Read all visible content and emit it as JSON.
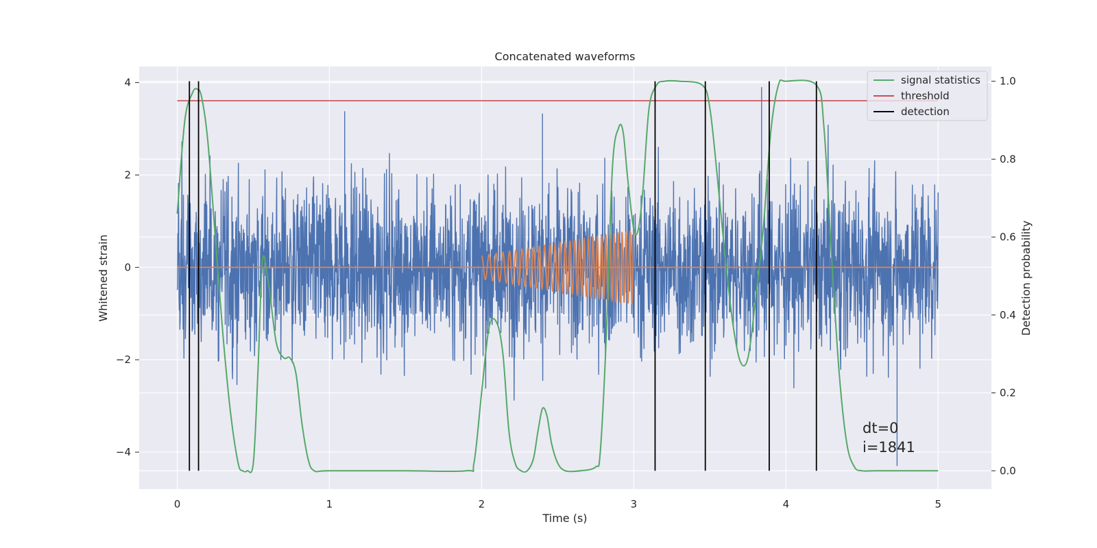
{
  "chart_data": {
    "type": "line",
    "title": "Concatenated waveforms",
    "xlabel": "Time (s)",
    "ylabel_left": "Whitened strain",
    "ylabel_right": "Detection probability",
    "xlim": [
      -0.25,
      5.35
    ],
    "ylim_left": [
      -4.8,
      4.35
    ],
    "ylim_right": [
      -0.047,
      1.038
    ],
    "x_ticks": [
      0,
      1,
      2,
      3,
      4,
      5
    ],
    "y_left_ticks": [
      -4,
      -2,
      0,
      2,
      4
    ],
    "y_right_ticks": [
      0.0,
      0.2,
      0.4,
      0.6,
      0.8,
      1.0
    ],
    "x_tick_labels": [
      "0",
      "1",
      "2",
      "3",
      "4",
      "5"
    ],
    "y_left_tick_labels": [
      "−4",
      "−2",
      "0",
      "2",
      "4"
    ],
    "y_right_tick_labels": [
      "0.0",
      "0.2",
      "0.4",
      "0.6",
      "0.8",
      "1.0"
    ],
    "grid": true,
    "legend_position": "top-right",
    "legend": [
      "signal statistics",
      "threshold",
      "detection"
    ],
    "colors": {
      "background": "#eaeaf2",
      "grid": "#ffffff",
      "strain": "#4c72b0",
      "injection": "#dd8452",
      "statistics": "#55a868",
      "threshold": "#c44e52",
      "detection": "#000000"
    },
    "annotations": [
      "dt=0",
      "i=1841"
    ],
    "series": [
      {
        "name": "signal statistics",
        "axis": "right",
        "x": [
          0.0,
          0.05,
          0.1,
          0.13,
          0.16,
          0.2,
          0.25,
          0.3,
          0.35,
          0.4,
          0.43,
          0.46,
          0.5,
          0.53,
          0.56,
          0.6,
          0.65,
          0.7,
          0.74,
          0.78,
          0.82,
          0.86,
          0.9,
          1.0,
          1.5,
          1.9,
          1.95,
          2.0,
          2.05,
          2.1,
          2.14,
          2.18,
          2.22,
          2.26,
          2.3,
          2.34,
          2.37,
          2.4,
          2.43,
          2.46,
          2.5,
          2.55,
          2.65,
          2.75,
          2.78,
          2.82,
          2.86,
          2.9,
          2.93,
          2.96,
          3.0,
          3.03,
          3.06,
          3.1,
          3.15,
          3.2,
          3.3,
          3.45,
          3.5,
          3.55,
          3.6,
          3.65,
          3.7,
          3.75,
          3.8,
          3.85,
          3.9,
          3.95,
          4.0,
          4.2,
          4.25,
          4.3,
          4.35,
          4.4,
          4.45,
          4.5,
          4.6,
          5.0
        ],
        "y": [
          0.66,
          0.9,
          0.97,
          0.98,
          0.96,
          0.85,
          0.6,
          0.35,
          0.15,
          0.02,
          0.0,
          0.0,
          0.02,
          0.25,
          0.54,
          0.48,
          0.33,
          0.29,
          0.29,
          0.25,
          0.12,
          0.03,
          0.0,
          0.0,
          0.0,
          0.0,
          0.02,
          0.2,
          0.37,
          0.38,
          0.3,
          0.1,
          0.02,
          0.0,
          0.0,
          0.03,
          0.1,
          0.16,
          0.14,
          0.07,
          0.02,
          0.0,
          0.0,
          0.01,
          0.05,
          0.35,
          0.78,
          0.88,
          0.87,
          0.75,
          0.62,
          0.62,
          0.72,
          0.93,
          0.99,
          1.0,
          1.0,
          0.99,
          0.93,
          0.75,
          0.55,
          0.38,
          0.28,
          0.29,
          0.44,
          0.62,
          0.87,
          0.99,
          1.0,
          0.99,
          0.88,
          0.55,
          0.25,
          0.07,
          0.01,
          0.0,
          0.0,
          0.0
        ]
      },
      {
        "name": "threshold",
        "axis": "right",
        "x": [
          0.0,
          5.0
        ],
        "y": [
          0.95,
          0.95
        ]
      },
      {
        "name": "detection",
        "axis": "right",
        "type": "vlines",
        "x": [
          0.08,
          0.14,
          3.14,
          3.47,
          3.89,
          4.2
        ],
        "ymin": 0.0,
        "ymax": 1.0
      },
      {
        "name": "",
        "axis": "left",
        "description": "whitened strain noise, 0 to 5 s, 4096 samples/s",
        "x_range": [
          0.0,
          5.0
        ],
        "mean": 0.0,
        "std": 0.9,
        "extremes": [
          [
            1.1,
            3.38
          ],
          [
            2.4,
            3.33
          ],
          [
            4.73,
            -4.3
          ],
          [
            3.84,
            3.9
          ]
        ]
      },
      {
        "name": "",
        "axis": "left",
        "description": "injected chirp, 2 to 3 s",
        "x_range": [
          2.0,
          3.0
        ],
        "amplitude_start": 0.25,
        "amplitude_end": 0.8,
        "freq_start_hz": 20,
        "freq_end_hz": 40
      }
    ]
  }
}
